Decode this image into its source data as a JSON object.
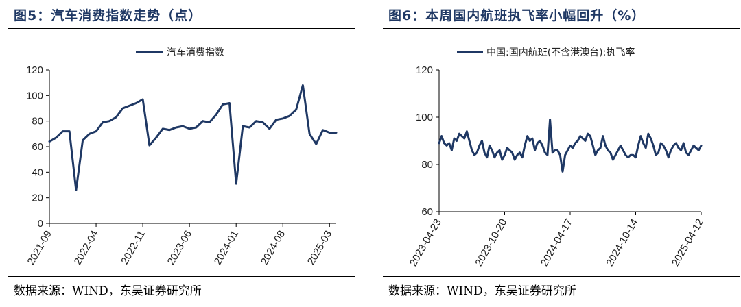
{
  "figures": [
    {
      "title": "图5：汽车消费指数走势（点）",
      "source": "数据来源：WIND，东吴证券研究所",
      "chart_data": {
        "type": "line",
        "series": [
          {
            "name": "汽车消费指数",
            "x": [
              "2021-09",
              "2021-10",
              "2021-11",
              "2021-12",
              "2022-01",
              "2022-02",
              "2022-03",
              "2022-04",
              "2022-05",
              "2022-06",
              "2022-07",
              "2022-08",
              "2022-09",
              "2022-10",
              "2022-11",
              "2022-12",
              "2023-01",
              "2023-02",
              "2023-03",
              "2023-04",
              "2023-05",
              "2023-06",
              "2023-07",
              "2023-08",
              "2023-09",
              "2023-10",
              "2023-11",
              "2023-12",
              "2024-01",
              "2024-02",
              "2024-03",
              "2024-04",
              "2024-05",
              "2024-06",
              "2024-07",
              "2024-08",
              "2024-09",
              "2024-10",
              "2024-11",
              "2024-12",
              "2025-01",
              "2025-02",
              "2025-03",
              "2025-04"
            ],
            "values": [
              64,
              67,
              72,
              72,
              26,
              65,
              70,
              72,
              79,
              80,
              83,
              90,
              92,
              94,
              97,
              61,
              67,
              74,
              73,
              75,
              76,
              74,
              75,
              80,
              79,
              85,
              93,
              94,
              31,
              76,
              75,
              80,
              79,
              74,
              81,
              82,
              84,
              89,
              108,
              70,
              62,
              73,
              71,
              71
            ]
          }
        ],
        "x_tick_labels": [
          "2021-09",
          "2022-04",
          "2022-11",
          "2023-06",
          "2024-01",
          "2024-08",
          "2025-03"
        ],
        "ylim": [
          0,
          120
        ],
        "y_ticks": [
          0,
          20,
          40,
          60,
          80,
          100,
          120
        ],
        "legend_position": "top-center",
        "grid": false,
        "color": "#1f3864"
      }
    },
    {
      "title": "图6：本周国内航班执飞率小幅回升（%）",
      "source": "数据来源：WIND，东吴证券研究所",
      "chart_data": {
        "type": "line",
        "series": [
          {
            "name": "中国:国内航班(不含港澳台):执飞率",
            "x": [
              "2023-04-23",
              "2023-04-30",
              "2023-05-07",
              "2023-05-14",
              "2023-05-21",
              "2023-05-28",
              "2023-06-04",
              "2023-06-11",
              "2023-06-18",
              "2023-06-25",
              "2023-07-02",
              "2023-07-09",
              "2023-07-16",
              "2023-07-23",
              "2023-07-30",
              "2023-08-06",
              "2023-08-13",
              "2023-08-20",
              "2023-08-27",
              "2023-09-03",
              "2023-09-10",
              "2023-09-17",
              "2023-09-24",
              "2023-10-01",
              "2023-10-08",
              "2023-10-15",
              "2023-10-20",
              "2023-10-27",
              "2023-11-03",
              "2023-11-10",
              "2023-11-17",
              "2023-11-24",
              "2023-12-01",
              "2023-12-08",
              "2023-12-15",
              "2023-12-22",
              "2023-12-29",
              "2024-01-05",
              "2024-01-12",
              "2024-01-19",
              "2024-01-26",
              "2024-02-02",
              "2024-02-09",
              "2024-02-16",
              "2024-02-23",
              "2024-03-01",
              "2024-03-08",
              "2024-03-15",
              "2024-03-22",
              "2024-03-29",
              "2024-04-05",
              "2024-04-12",
              "2024-04-17",
              "2024-04-24",
              "2024-05-01",
              "2024-05-08",
              "2024-05-15",
              "2024-05-22",
              "2024-05-29",
              "2024-06-05",
              "2024-06-12",
              "2024-06-19",
              "2024-06-26",
              "2024-07-03",
              "2024-07-10",
              "2024-07-17",
              "2024-07-24",
              "2024-07-31",
              "2024-08-07",
              "2024-08-14",
              "2024-08-21",
              "2024-08-28",
              "2024-09-04",
              "2024-09-11",
              "2024-09-18",
              "2024-09-25",
              "2024-10-02",
              "2024-10-09",
              "2024-10-14",
              "2024-10-21",
              "2024-10-28",
              "2024-11-04",
              "2024-11-11",
              "2024-11-18",
              "2024-11-25",
              "2024-12-02",
              "2024-12-09",
              "2024-12-16",
              "2024-12-23",
              "2024-12-30",
              "2025-01-06",
              "2025-01-13",
              "2025-01-20",
              "2025-01-27",
              "2025-02-03",
              "2025-02-10",
              "2025-02-17",
              "2025-02-24",
              "2025-03-03",
              "2025-03-10",
              "2025-03-17",
              "2025-03-24",
              "2025-03-31",
              "2025-04-07",
              "2025-04-12"
            ],
            "values": [
              89,
              92,
              89,
              88,
              89,
              86,
              91,
              90,
              93,
              92,
              91,
              94,
              90,
              86,
              84,
              85,
              88,
              90,
              85,
              83,
              88,
              86,
              83,
              85,
              86,
              82,
              84,
              87,
              86,
              85,
              82,
              84,
              85,
              83,
              88,
              92,
              90,
              91,
              86,
              89,
              90,
              88,
              85,
              84,
              99,
              85,
              86,
              86,
              84,
              77,
              84,
              86,
              88,
              87,
              89,
              90,
              92,
              91,
              90,
              93,
              92,
              88,
              84,
              86,
              87,
              92,
              88,
              86,
              85,
              82,
              84,
              86,
              88,
              86,
              84,
              83,
              84,
              84,
              83,
              88,
              92,
              89,
              87,
              93,
              91,
              88,
              84,
              85,
              89,
              88,
              86,
              83,
              86,
              88,
              89,
              87,
              86,
              89,
              85,
              84,
              86,
              88,
              87,
              86,
              88
            ],
            "note_ignore": ""
          }
        ],
        "x_tick_labels": [
          "2023-04-23",
          "2023-10-20",
          "2024-04-17",
          "2024-10-14",
          "2025-04-12"
        ],
        "ylim": [
          60,
          120
        ],
        "y_ticks": [
          60,
          80,
          100,
          120
        ],
        "legend_position": "top-center",
        "grid": false,
        "color": "#1f3864"
      }
    }
  ]
}
